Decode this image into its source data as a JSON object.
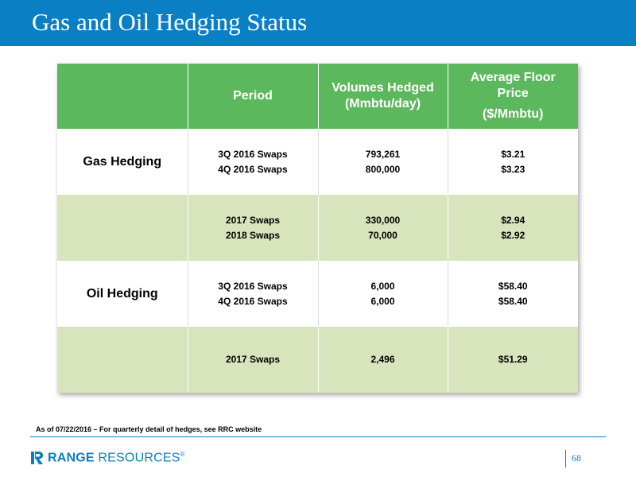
{
  "title": "Gas and Oil Hedging Status",
  "table": {
    "headers": {
      "period": "Period",
      "volumes": [
        "Volumes Hedged",
        "(Mmbtu/day)"
      ],
      "price": [
        "Average Floor",
        "Price",
        "($/Mmbtu)"
      ]
    },
    "rows": [
      {
        "label": "Gas Hedging",
        "periods": [
          "3Q 2016 Swaps",
          "4Q 2016 Swaps"
        ],
        "volumes": [
          "793,261",
          "800,000"
        ],
        "prices": [
          "$3.21",
          "$3.23"
        ]
      },
      {
        "label": "",
        "periods": [
          "2017 Swaps",
          "2018 Swaps"
        ],
        "volumes": [
          "330,000",
          "70,000"
        ],
        "prices": [
          "$2.94",
          "$2.92"
        ]
      },
      {
        "label": "Oil Hedging",
        "periods": [
          "3Q 2016 Swaps",
          "4Q 2016 Swaps"
        ],
        "volumes": [
          "6,000",
          "6,000"
        ],
        "prices": [
          "$58.40",
          "$58.40"
        ]
      },
      {
        "label": "",
        "periods": [
          "2017 Swaps"
        ],
        "volumes": [
          "2,496"
        ],
        "prices": [
          "$51.29"
        ]
      }
    ]
  },
  "footnote": "As of 07/22/2016 – For quarterly detail of hedges, see RRC website",
  "logo": {
    "icon": "range-resources-logo-mark",
    "word1": "RANGE",
    "word2": " RESOURCES",
    "mark": "®"
  },
  "page_number": "68",
  "colors": {
    "title_bar": "#0a7fc4",
    "header_green": "#5cb85c",
    "band_green": "#d8e4bc",
    "accent_blue": "#0a7fc4"
  }
}
